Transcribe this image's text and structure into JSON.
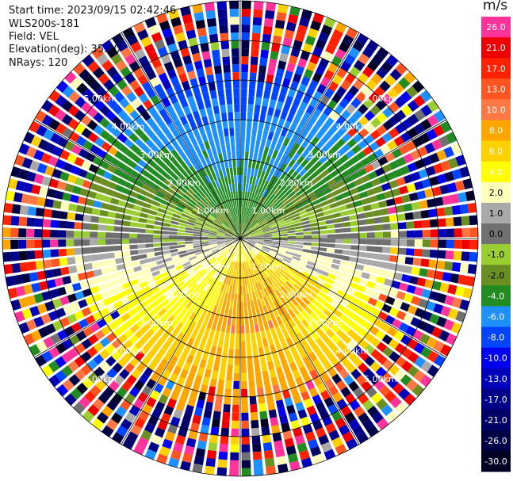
{
  "header": {
    "start_time": "Start time: 2023/09/15 02:42:46",
    "station": "WLS200s-181",
    "field": "Field: VEL",
    "elevation": "Elevation(deg): 35.30",
    "nrays": "NRays: 120"
  },
  "colorbar": {
    "unit": "m/s",
    "labels": [
      "26.0",
      "21.0",
      "17.0",
      "13.0",
      "10.0",
      "8.0",
      "6.0",
      "4.0",
      "2.0",
      "1.0",
      "0.0",
      "-1.0",
      "-2.0",
      "-4.0",
      "-6.0",
      "-8.0",
      "-10.0",
      "-13.0",
      "-17.0",
      "-21.0",
      "-26.0",
      "-30.0"
    ],
    "colors": [
      "#ff3399",
      "#ee0000",
      "#ff2200",
      "#ff5522",
      "#ff7744",
      "#ffa500",
      "#ffd000",
      "#ffff00",
      "#ffffbb",
      "#a9a9a9",
      "#707070",
      "#9acd32",
      "#6b8e23",
      "#228b22",
      "#1e90ff",
      "#0044ff",
      "#0000ee",
      "#0000bb",
      "#000088",
      "#000066",
      "#000044",
      "#000022"
    ]
  },
  "chart_data": {
    "type": "ppi",
    "field": "VEL",
    "nrays": 120,
    "max_range_km": 6.0,
    "range_rings_km": [
      1.0,
      2.0,
      3.0,
      4.0,
      5.0,
      6.0
    ],
    "ring_labels": [
      "1.00km",
      "2.00km",
      "3.00km",
      "4.00km",
      "5.00km"
    ],
    "spokes_deg": [
      0,
      30,
      60,
      90,
      120,
      150,
      180,
      210,
      240,
      270,
      300,
      330
    ],
    "velocity_ranges_m_s": [
      -30.0,
      26.0
    ],
    "pattern": "Negative velocities (-2 to -6 m/s, greens) to the north; positive velocities (2 to 8 m/s, yellow/orange) to the south; near-zero grey band on the west-east axis; random noise beyond about 4 km."
  }
}
